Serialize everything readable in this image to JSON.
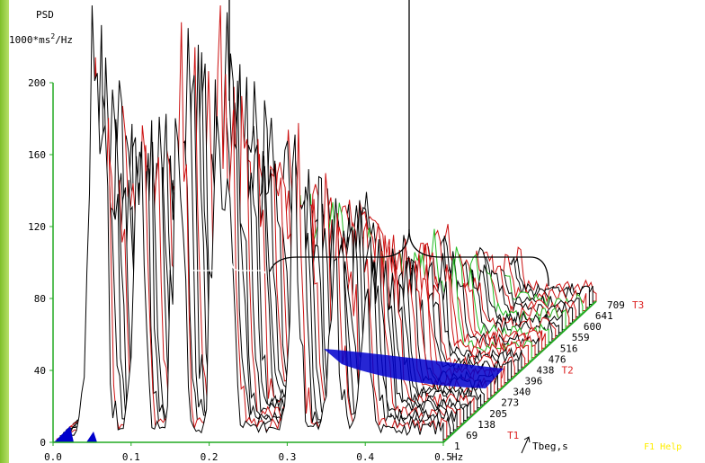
{
  "chart_data": {
    "type": "waterfall-3d",
    "title": "PSD",
    "ylabel": "1000*ms2/Hz",
    "ylabel_base": "1000*ms",
    "ylabel_sup": "2",
    "ylabel_tail": "/Hz",
    "xlabel": "Hz",
    "zlabel": "Tbeg,s",
    "ylim": [
      0,
      220
    ],
    "xlim": [
      0,
      0.5
    ],
    "y_ticks": [
      "0",
      "40",
      "80",
      "120",
      "160",
      "200"
    ],
    "x_ticks": [
      "0.0",
      "0.1",
      "0.2",
      "0.3",
      "0.4",
      "0.5"
    ],
    "z_ticks": [
      "1",
      "69",
      "138",
      "205",
      "273",
      "340",
      "396",
      "438",
      "476",
      "516",
      "559",
      "600",
      "641",
      "709"
    ],
    "markers": [
      {
        "label": "T1",
        "at": "69"
      },
      {
        "label": "T2",
        "at": "438"
      },
      {
        "label": "T3",
        "at": "709"
      }
    ],
    "peaks_hz": [
      0.05,
      0.065,
      0.11,
      0.16,
      0.21,
      0.225,
      0.31,
      0.36,
      0.4
    ],
    "grid": false
  },
  "hint": "F1 Help",
  "colors": {
    "axis": "#22aa22",
    "marker": "#dd2222",
    "hint": "#ffee00",
    "sidebar": "#8fc83a",
    "spectrum_black": "#000000",
    "spectrum_red": "#cc1111",
    "spectrum_blue": "#0000cc",
    "spectrum_green": "#22bb22"
  }
}
